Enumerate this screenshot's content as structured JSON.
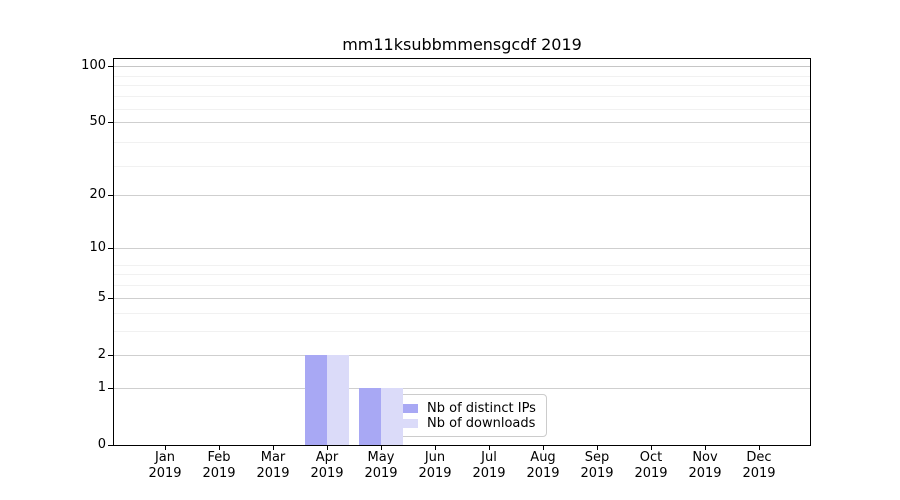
{
  "chart_data": {
    "type": "bar",
    "title": "mm11ksubbmmensgcdf 2019",
    "categories": [
      "Jan 2019",
      "Feb 2019",
      "Mar 2019",
      "Apr 2019",
      "May 2019",
      "Jun 2019",
      "Jul 2019",
      "Aug 2019",
      "Sep 2019",
      "Oct 2019",
      "Nov 2019",
      "Dec 2019"
    ],
    "series": [
      {
        "name": "Nb of distinct IPs",
        "color": "#a8a8f4",
        "values": [
          0,
          0,
          0,
          2,
          1,
          0,
          0,
          0,
          0,
          0,
          0,
          0
        ]
      },
      {
        "name": "Nb of downloads",
        "color": "#dbdbf9",
        "values": [
          0,
          0,
          0,
          2,
          1,
          0,
          0,
          0,
          0,
          0,
          0,
          0
        ]
      }
    ],
    "y_axis": {
      "scale": "log1p",
      "tick_values": [
        0,
        1,
        2,
        5,
        10,
        20,
        50,
        100
      ],
      "tick_labels": [
        "0",
        "1",
        "2",
        "5",
        "10",
        "20",
        "50",
        "100"
      ],
      "minor_gridline_values": [
        3,
        4,
        6,
        7,
        8,
        29,
        39,
        59,
        69,
        79,
        89
      ],
      "ylim": [
        0,
        110
      ]
    },
    "x_axis": {
      "year_split": true
    },
    "legend": {
      "position": "lower-center",
      "labels": [
        "Nb of distinct IPs",
        "Nb of downloads"
      ]
    },
    "grid": true,
    "background": "#ffffff"
  }
}
